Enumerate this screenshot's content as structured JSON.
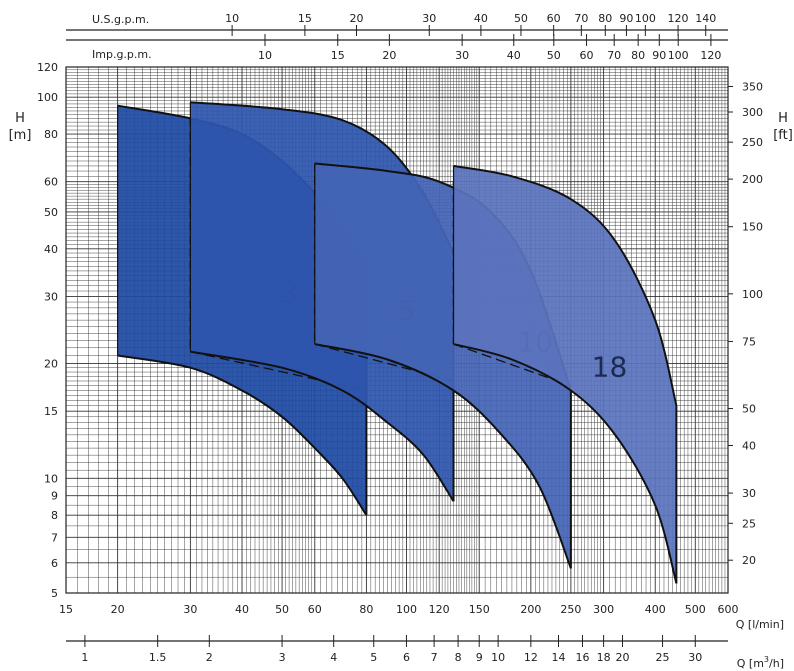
{
  "chart_data": {
    "type": "area",
    "title": "",
    "scale": "log-log",
    "grid": true,
    "x_axis": {
      "label": "Q [l/min]",
      "range": [
        15,
        600
      ],
      "ticks": [
        15,
        20,
        30,
        40,
        50,
        60,
        80,
        100,
        120,
        150,
        200,
        250,
        300,
        400,
        500,
        600
      ]
    },
    "y_axis": {
      "label": "H [m]",
      "label_line1": "H",
      "label_line2": "[m]",
      "range": [
        5,
        120
      ],
      "ticks": [
        5,
        6,
        7,
        8,
        9,
        10,
        15,
        20,
        30,
        40,
        50,
        60,
        80,
        100,
        120
      ]
    },
    "y2_axis": {
      "label_line1": "H",
      "label_line2": "[ft]",
      "ticks": [
        20,
        25,
        30,
        40,
        50,
        75,
        100,
        150,
        200,
        250,
        300,
        350
      ]
    },
    "x2_axis": {
      "label": "Q [m³/h]",
      "label_text": "Q [m",
      "label_sup": "3",
      "label_tail": "/h]",
      "ticks": [
        "1",
        "1.5",
        "2",
        "3",
        "4",
        "5",
        "6",
        "7",
        "8",
        "9",
        "10",
        "12",
        "14",
        "16",
        "18",
        "20",
        "25",
        "30"
      ]
    },
    "x3_axis": {
      "label": "U.S.g.p.m.",
      "ticks": [
        "10",
        "15",
        "20",
        "30",
        "40",
        "50",
        "60",
        "70",
        "80",
        "90",
        "100",
        "120",
        "140"
      ]
    },
    "x4_axis": {
      "label": "Imp.g.p.m.",
      "ticks": [
        "10",
        "15",
        "20",
        "30",
        "40",
        "50",
        "60",
        "70",
        "80",
        "90",
        "100",
        "120"
      ]
    },
    "series": [
      {
        "name": "3",
        "color": "#1e4aa2",
        "q_range": [
          20,
          80
        ],
        "h_max_curve": [
          [
            20,
            95
          ],
          [
            30,
            88
          ],
          [
            40,
            80
          ],
          [
            50,
            68
          ],
          [
            60,
            56
          ],
          [
            70,
            45
          ],
          [
            80,
            36
          ]
        ],
        "h_min_curve": [
          [
            20,
            21
          ],
          [
            30,
            19.5
          ],
          [
            40,
            17
          ],
          [
            50,
            14.5
          ],
          [
            60,
            12
          ],
          [
            70,
            10
          ],
          [
            80,
            8
          ]
        ],
        "dashed": {
          "q": 30,
          "h_top": 88,
          "h_bottom": 21.5,
          "h_end": 17
        }
      },
      {
        "name": "5",
        "color": "#2e55ad",
        "q_range": [
          30,
          130
        ],
        "h_max_curve": [
          [
            30,
            97
          ],
          [
            50,
            93
          ],
          [
            70,
            87
          ],
          [
            90,
            74
          ],
          [
            110,
            56
          ],
          [
            130,
            39
          ]
        ],
        "h_min_curve": [
          [
            30,
            21.5
          ],
          [
            50,
            19.5
          ],
          [
            70,
            17
          ],
          [
            90,
            14
          ],
          [
            110,
            11.5
          ],
          [
            130,
            8.7
          ]
        ],
        "dashed": {
          "q": 60,
          "h_top": 67,
          "h_bottom": 22.5,
          "h_end": 18
        }
      },
      {
        "name": "10",
        "color": "#4464b5",
        "q_range": [
          60,
          250
        ],
        "h_max_curve": [
          [
            60,
            67
          ],
          [
            90,
            64
          ],
          [
            120,
            60
          ],
          [
            160,
            50
          ],
          [
            200,
            35
          ],
          [
            250,
            17
          ]
        ],
        "h_min_curve": [
          [
            60,
            22.5
          ],
          [
            90,
            20.5
          ],
          [
            130,
            17
          ],
          [
            170,
            13
          ],
          [
            210,
            9.5
          ],
          [
            250,
            5.8
          ]
        ],
        "dashed": {
          "q": 130,
          "h_top": 60,
          "h_bottom": 22.5,
          "h_end": 17.5
        }
      },
      {
        "name": "18",
        "color": "#5b73bd",
        "q_range": [
          130,
          450
        ],
        "h_max_curve": [
          [
            130,
            66
          ],
          [
            180,
            62
          ],
          [
            250,
            54
          ],
          [
            320,
            42
          ],
          [
            400,
            26
          ],
          [
            450,
            15.5
          ]
        ],
        "h_min_curve": [
          [
            130,
            22.5
          ],
          [
            180,
            20.5
          ],
          [
            250,
            17
          ],
          [
            320,
            13
          ],
          [
            400,
            8.5
          ],
          [
            450,
            5.3
          ]
        ]
      }
    ]
  }
}
